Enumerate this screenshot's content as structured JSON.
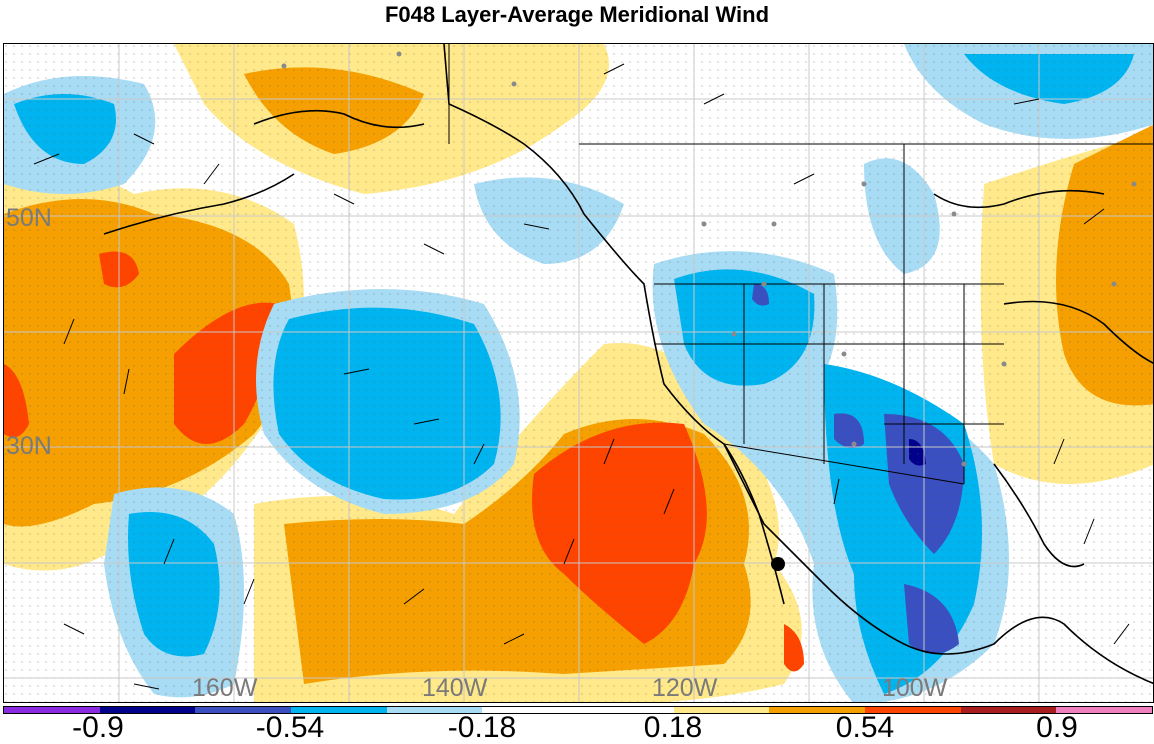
{
  "title": "F048 Layer-Average Meridional Wind",
  "lat_labels": [
    "50N",
    "30N"
  ],
  "lon_labels": [
    "160W",
    "140W",
    "120W",
    "100W"
  ],
  "colorbar": {
    "colors": [
      "#8a2be2",
      "#00008b",
      "#3a4fc0",
      "#00b4f0",
      "#a8dcf5",
      "#ffffff",
      "#ffffff",
      "#ffe98a",
      "#f5a000",
      "#ff4400",
      "#a81e1e",
      "#f080c0"
    ],
    "tick_labels": [
      "-0.9",
      "-0.54",
      "-0.18",
      "0.18",
      "0.54",
      "0.9"
    ]
  },
  "marker": "hurricane-marker"
}
